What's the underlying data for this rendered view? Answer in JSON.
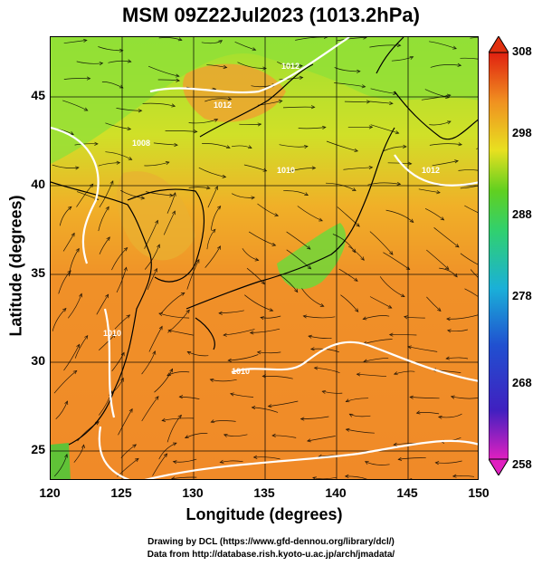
{
  "title": "MSM 09Z22Jul2023 (1013.2hPa)",
  "x_axis": {
    "label": "Longitude (degrees)",
    "ticks": [
      "120",
      "125",
      "130",
      "135",
      "140",
      "145",
      "150"
    ]
  },
  "y_axis": {
    "label": "Latitude  (degrees)",
    "ticks": [
      "25",
      "30",
      "35",
      "40",
      "45"
    ]
  },
  "colorbar": {
    "ticks": [
      "308",
      "298",
      "288",
      "278",
      "268",
      "258"
    ],
    "min": 258,
    "max": 308,
    "colors": [
      "#e020c0",
      "#2020c0",
      "#1a9ad8",
      "#30d070",
      "#50d020",
      "#e8e020",
      "#f09020",
      "#e02010"
    ]
  },
  "contour_labels": [
    "1010",
    "1010",
    "1010",
    "1012",
    "1012",
    "1012",
    "1008"
  ],
  "credit": {
    "line1": "Drawing by DCL (https://www.gfd-dennou.org/library/dcl/)",
    "line2": "Data from http://database.rish.kyoto-u.ac.jp/arch/jmadata/"
  },
  "map": {
    "lon_range": [
      120,
      150
    ],
    "lat_range": [
      22.8,
      47.6
    ],
    "grid": true,
    "field_colors": {
      "sea_south": "#f08a28",
      "sea_north": "#a8e030",
      "land_green": "#48d030"
    }
  }
}
